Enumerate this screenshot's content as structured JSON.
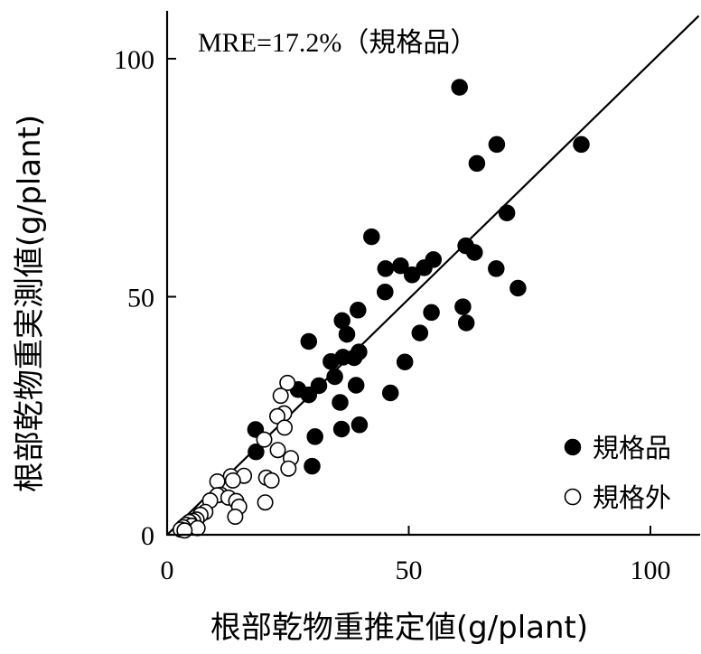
{
  "chart_data": {
    "type": "scatter",
    "xlabel": "根部乾物重推定値(g/plant)",
    "ylabel": "根部乾物重実測値(g/plant)",
    "annotation": "MRE=17.2%（規格品）",
    "xlim": [
      0,
      110
    ],
    "ylim": [
      0,
      110
    ],
    "x_ticks": [
      0,
      50,
      100
    ],
    "y_ticks": [
      0,
      50,
      100
    ],
    "reference_line": {
      "type": "1:1",
      "from": [
        0,
        0
      ],
      "to": [
        110,
        109
      ]
    },
    "legend": {
      "position": "bottom-right"
    },
    "series": [
      {
        "name": "規格品",
        "marker": "filled-circle",
        "color": "#000000",
        "points": [
          [
            60.5,
            94
          ],
          [
            85.7,
            82
          ],
          [
            68.2,
            82
          ],
          [
            64.1,
            78
          ],
          [
            70.3,
            67.6
          ],
          [
            61.8,
            60.7
          ],
          [
            63.6,
            59.3
          ],
          [
            42.3,
            62.6
          ],
          [
            55.1,
            57.8
          ],
          [
            48.3,
            56.5
          ],
          [
            53.2,
            56.1
          ],
          [
            45.2,
            55.9
          ],
          [
            50.7,
            54.6
          ],
          [
            68.1,
            55.9
          ],
          [
            72.6,
            51.8
          ],
          [
            45.1,
            51
          ],
          [
            61.2,
            47.9
          ],
          [
            39.5,
            47.2
          ],
          [
            54.7,
            46.7
          ],
          [
            36.2,
            45
          ],
          [
            61.9,
            44.5
          ],
          [
            52.3,
            42.4
          ],
          [
            37.2,
            42.1
          ],
          [
            29.3,
            40.6
          ],
          [
            39.7,
            38.4
          ],
          [
            36.4,
            37.3
          ],
          [
            38.7,
            37.2
          ],
          [
            33.9,
            36.4
          ],
          [
            49.2,
            36.3
          ],
          [
            34.7,
            33.2
          ],
          [
            39.1,
            31.4
          ],
          [
            31.4,
            31.3
          ],
          [
            27.1,
            30.5
          ],
          [
            46.2,
            29.8
          ],
          [
            29.3,
            29.4
          ],
          [
            35.8,
            27.8
          ],
          [
            18.3,
            22.1
          ],
          [
            39.8,
            23.1
          ],
          [
            36.1,
            22.2
          ],
          [
            30.6,
            20.6
          ],
          [
            18.4,
            17.4
          ],
          [
            30.0,
            14.4
          ]
        ]
      },
      {
        "name": "規格外",
        "marker": "open-circle",
        "color": "#000000",
        "points": [
          [
            24.9,
            31.9
          ],
          [
            23.5,
            29.2
          ],
          [
            24.2,
            25.5
          ],
          [
            22.8,
            24.9
          ],
          [
            24.3,
            22.5
          ],
          [
            20.1,
            20.0
          ],
          [
            22.9,
            17.8
          ],
          [
            25.6,
            16.1
          ],
          [
            25.1,
            13.9
          ],
          [
            13.2,
            12.3
          ],
          [
            15.9,
            12.4
          ],
          [
            20.5,
            12.0
          ],
          [
            21.6,
            11.4
          ],
          [
            10.4,
            11.2
          ],
          [
            13.6,
            11.4
          ],
          [
            11.1,
            8.4
          ],
          [
            10.4,
            8.3
          ],
          [
            12.7,
            7.8
          ],
          [
            14.3,
            7.1
          ],
          [
            8.9,
            7.2
          ],
          [
            20.3,
            6.8
          ],
          [
            14.9,
            5.9
          ],
          [
            7.9,
            4.8
          ],
          [
            14.1,
            3.8
          ],
          [
            6.9,
            4.2
          ],
          [
            6.1,
            3.2
          ],
          [
            5.4,
            2.9
          ],
          [
            4.6,
            2.7
          ],
          [
            3.9,
            2.1
          ],
          [
            5.1,
            1.9
          ],
          [
            3.3,
            1.6
          ],
          [
            2.8,
            1.1
          ],
          [
            6.3,
            1.4
          ],
          [
            3.6,
            0.9
          ]
        ]
      }
    ]
  }
}
